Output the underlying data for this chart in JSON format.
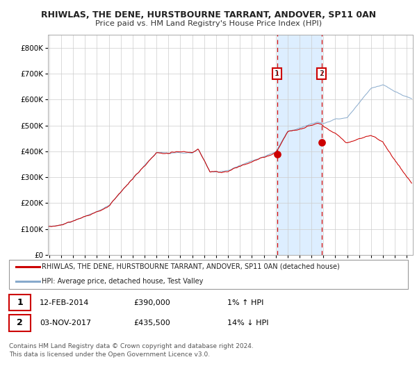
{
  "title1": "RHIWLAS, THE DENE, HURSTBOURNE TARRANT, ANDOVER, SP11 0AN",
  "title2": "Price paid vs. HM Land Registry's House Price Index (HPI)",
  "legend_red": "RHIWLAS, THE DENE, HURSTBOURNE TARRANT, ANDOVER, SP11 0AN (detached house)",
  "legend_blue": "HPI: Average price, detached house, Test Valley",
  "annotation1_date": "12-FEB-2014",
  "annotation1_price": "£390,000",
  "annotation1_hpi": "1% ↑ HPI",
  "annotation2_date": "03-NOV-2017",
  "annotation2_price": "£435,500",
  "annotation2_hpi": "14% ↓ HPI",
  "footer": "Contains HM Land Registry data © Crown copyright and database right 2024.\nThis data is licensed under the Open Government Licence v3.0.",
  "ylim": [
    0,
    850000
  ],
  "yticks": [
    0,
    100000,
    200000,
    300000,
    400000,
    500000,
    600000,
    700000,
    800000
  ],
  "ytick_labels": [
    "£0",
    "£100K",
    "£200K",
    "£300K",
    "£400K",
    "£500K",
    "£600K",
    "£700K",
    "£800K"
  ],
  "vline1_year": 2014.12,
  "vline2_year": 2017.84,
  "point1_year": 2014.12,
  "point1_value": 390000,
  "point2_year": 2017.84,
  "point2_value": 435500,
  "red_color": "#cc0000",
  "blue_color": "#88aacc",
  "shade_color": "#ddeeff",
  "background_color": "#ffffff",
  "grid_color": "#cccccc",
  "start_year": 1995.0,
  "end_year": 2025.4
}
